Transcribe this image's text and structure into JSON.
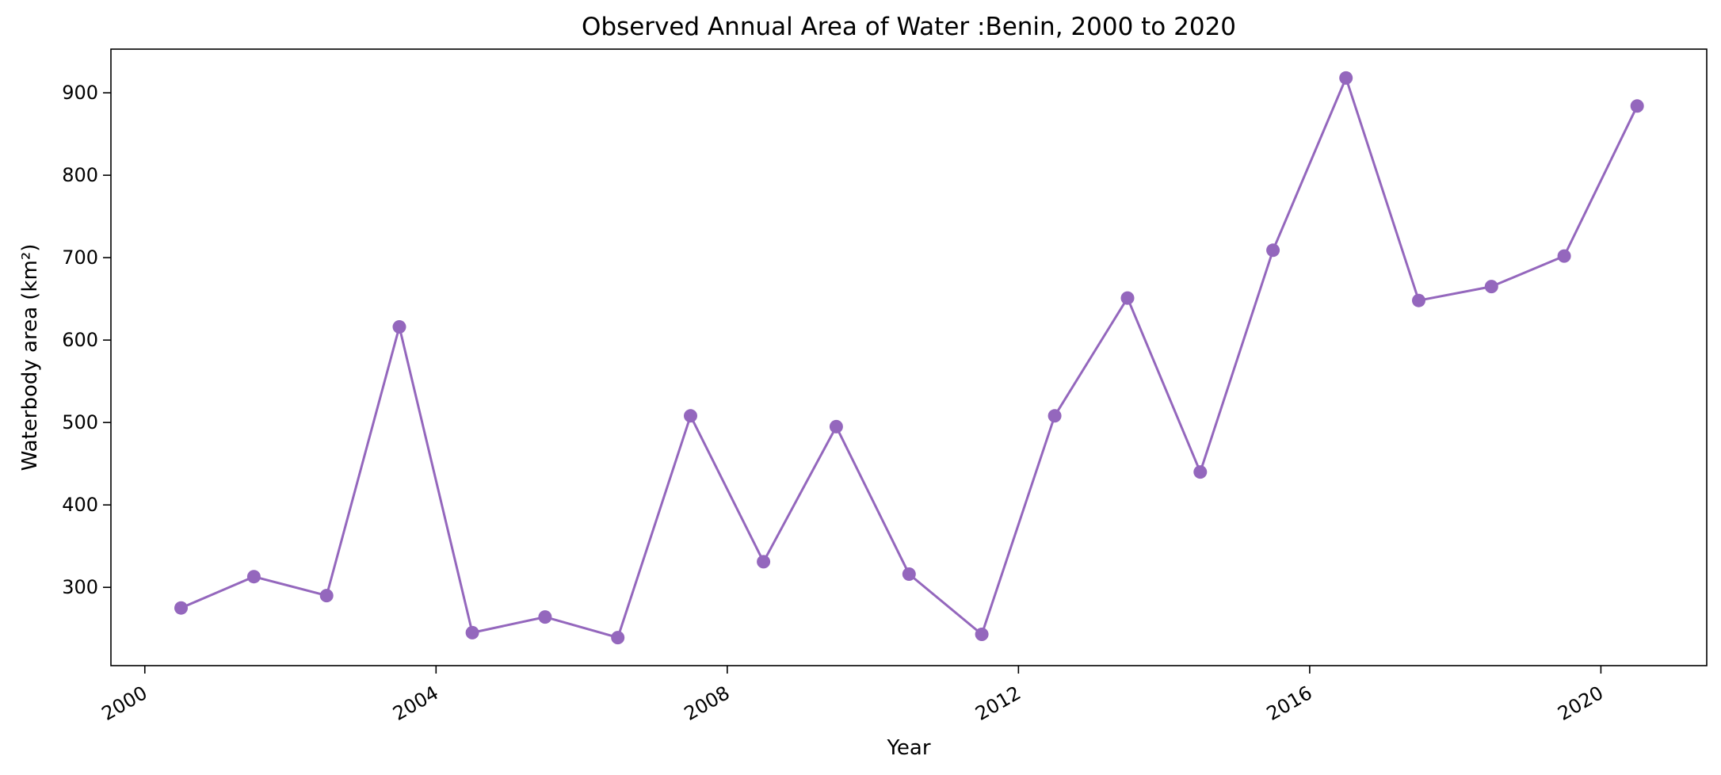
{
  "chart_data": {
    "type": "line",
    "title": "Observed Annual Area of Water :Benin, 2000 to 2020",
    "xlabel": "Year",
    "ylabel": "Waterbody area (km²)",
    "xlim": [
      "1999-07-15",
      "2021-06-15"
    ],
    "ylim": [
      205,
      953
    ],
    "x_ticks": [
      "2000",
      "2004",
      "2008",
      "2012",
      "2016",
      "2020"
    ],
    "y_ticks": [
      300,
      400,
      500,
      600,
      700,
      800,
      900
    ],
    "grid": false,
    "series": [
      {
        "color": "#9467bd",
        "marker": "circle",
        "x": [
          "2000-07-01",
          "2001-07-01",
          "2002-07-01",
          "2003-07-01",
          "2004-07-01",
          "2005-07-01",
          "2006-07-01",
          "2007-07-01",
          "2008-07-01",
          "2009-07-01",
          "2010-07-01",
          "2011-07-01",
          "2012-07-01",
          "2013-07-01",
          "2014-07-01",
          "2015-07-01",
          "2016-07-01",
          "2017-07-01",
          "2018-07-01",
          "2019-07-01",
          "2020-07-01"
        ],
        "values": [
          275,
          313,
          290,
          616,
          245,
          264,
          239,
          508,
          331,
          495,
          316,
          243,
          508,
          651,
          440,
          709,
          918,
          648,
          665,
          702,
          884
        ]
      }
    ]
  }
}
